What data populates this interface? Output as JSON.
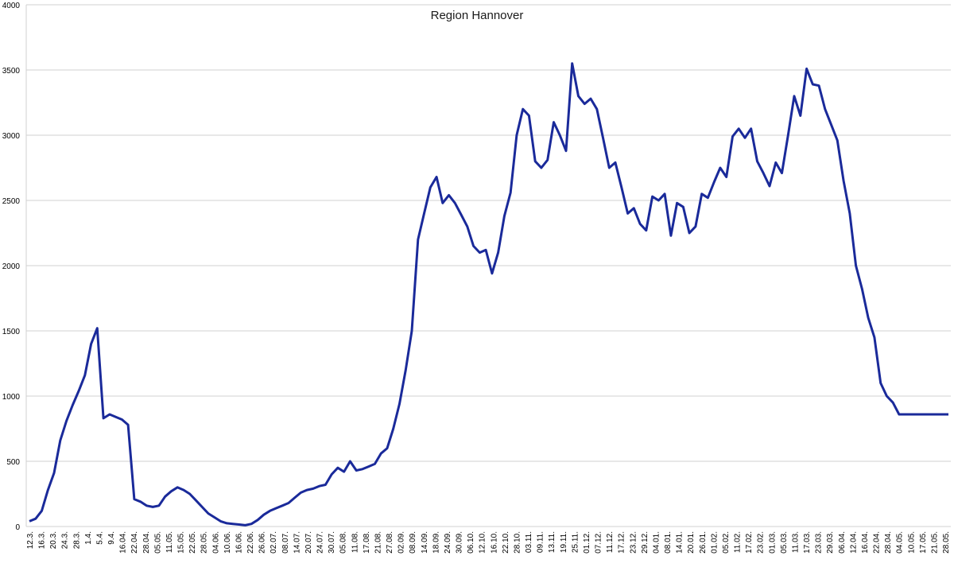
{
  "chart_data": {
    "type": "line",
    "title": "Region Hannover",
    "xlabel": "",
    "ylabel": "",
    "ylim": [
      0,
      4000
    ],
    "yticks": [
      0,
      500,
      1000,
      1500,
      2000,
      2500,
      3000,
      3500,
      4000
    ],
    "grid": true,
    "color": "#1a2a9a",
    "xtick_labels": [
      "12.3.",
      "16.3.",
      "20.3.",
      "24.3.",
      "28.3.",
      "1.4.",
      "5.4.",
      "9.4.",
      "16.04.",
      "22.04.",
      "28.04.",
      "05.05.",
      "11.05.",
      "15.05.",
      "22.05.",
      "28.05.",
      "04.06.",
      "10.06.",
      "16.06.",
      "22.06.",
      "26.06.",
      "02.07.",
      "08.07.",
      "14.07.",
      "20.07.",
      "24.07.",
      "30.07.",
      "05.08.",
      "11.08.",
      "17.08.",
      "21.08.",
      "27.08.",
      "02.09.",
      "08.09.",
      "14.09.",
      "18.09.",
      "24.09.",
      "30.09.",
      "06.10.",
      "12.10.",
      "16.10.",
      "22.10.",
      "28.10.",
      "03.11.",
      "09.11.",
      "13.11.",
      "19.11.",
      "25.11.",
      "01.12.",
      "07.12.",
      "11.12.",
      "17.12.",
      "23.12.",
      "29.12.",
      "04.01.",
      "08.01.",
      "14.01.",
      "20.01.",
      "26.01.",
      "01.02.",
      "05.02.",
      "11.02.",
      "17.02.",
      "23.02.",
      "01.03.",
      "05.03.",
      "11.03.",
      "17.03.",
      "23.03.",
      "29.03.",
      "06.04.",
      "12.04.",
      "16.04.",
      "22.04.",
      "28.04.",
      "04.05.",
      "10.05.",
      "17.05.",
      "21.05.",
      "28.05."
    ],
    "x": [
      0,
      3,
      6,
      9,
      12,
      15,
      18,
      21,
      24,
      27,
      30,
      33,
      36,
      39,
      42,
      45,
      48,
      51,
      54,
      57,
      60,
      63,
      66,
      69,
      72,
      75,
      78,
      81,
      84,
      87,
      90,
      93,
      96,
      99,
      102,
      105,
      108,
      111,
      114,
      117,
      120,
      123,
      126,
      129,
      132,
      135,
      138,
      141,
      144,
      147,
      150,
      153,
      156,
      159,
      162,
      165,
      168,
      171,
      174,
      177,
      180,
      183,
      186,
      189,
      192,
      195,
      198,
      201,
      204,
      207,
      210,
      213,
      216,
      219,
      222,
      225,
      228,
      231,
      234,
      237,
      240,
      243,
      246,
      249,
      252,
      255,
      258,
      261,
      264,
      267,
      270,
      273,
      276,
      279,
      282,
      285,
      288,
      291,
      294,
      297,
      300,
      303,
      306,
      309,
      312,
      315,
      318,
      321,
      324,
      327,
      330,
      333,
      336,
      339,
      342,
      345,
      348,
      351,
      354,
      357,
      360,
      363,
      366,
      369,
      372,
      375,
      378,
      381,
      384,
      387,
      390,
      393,
      396,
      399,
      402,
      405,
      408,
      411,
      414,
      417,
      420,
      423,
      426,
      429,
      432,
      435,
      438,
      441,
      444,
      447
    ],
    "series": [
      {
        "values": [
          40,
          60,
          120,
          280,
          410,
          660,
          810,
          930,
          1040,
          1160,
          1400,
          1520,
          830,
          860,
          840,
          820,
          780,
          210,
          190,
          160,
          150,
          160,
          230,
          270,
          300,
          280,
          250,
          200,
          150,
          100,
          70,
          40,
          25,
          20,
          15,
          10,
          20,
          50,
          90,
          120,
          140,
          160,
          180,
          220,
          260,
          280,
          290,
          310,
          320,
          400,
          450,
          420,
          500,
          430,
          440,
          460,
          480,
          560,
          600,
          750,
          940,
          1200,
          1500,
          2200,
          2400,
          2600,
          2680,
          2480,
          2540,
          2480,
          2390,
          2300,
          2150,
          2100,
          2120,
          1940,
          2100,
          2380,
          2560,
          3000,
          3200,
          3150,
          2800,
          2750,
          2810,
          3100,
          3000,
          2880,
          3550,
          3300,
          3240,
          3280,
          3200,
          2980,
          2750,
          2790,
          2600,
          2400,
          2440,
          2320,
          2270,
          2530,
          2500,
          2550,
          2230,
          2480,
          2450,
          2250,
          2300,
          2550,
          2520,
          2640,
          2750,
          2680,
          2990,
          3050,
          2980,
          3050,
          2800,
          2710,
          2610,
          2790,
          2710,
          3000,
          3300,
          3150,
          3510,
          3390,
          3380,
          3200,
          3080,
          2960,
          2650,
          2400,
          2000,
          1820,
          1600,
          1450,
          1100,
          1000,
          950,
          860,
          860,
          860,
          860,
          860,
          860,
          860,
          860,
          860
        ]
      }
    ]
  }
}
